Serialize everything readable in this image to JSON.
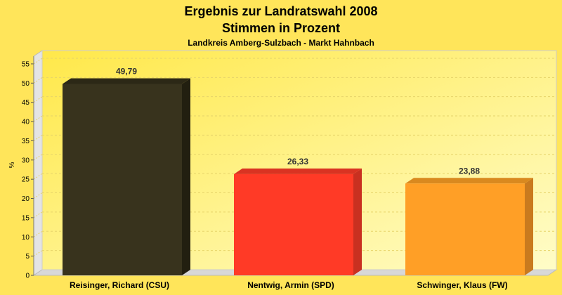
{
  "chart_data": {
    "type": "bar",
    "title": "Ergebnis zur Landratswahl 2008",
    "subtitle": "Stimmen in Prozent",
    "subsubtitle": "Landkreis Amberg-Sulzbach - Markt Hahnbach",
    "ylabel": "%",
    "xlabel": "",
    "ylim": [
      0,
      57
    ],
    "yticks": [
      0,
      5,
      10,
      15,
      20,
      25,
      30,
      35,
      40,
      45,
      50,
      55
    ],
    "grid": true,
    "categories": [
      "Reisinger, Richard (CSU)",
      "Nentwig, Armin (SPD)",
      "Schwinger, Klaus (FW)"
    ],
    "values": [
      49.79,
      26.33,
      23.88
    ],
    "value_labels": [
      "49,79",
      "26,33",
      "23,88"
    ],
    "colors": [
      "#38331d",
      "#ff3a26",
      "#ff9f26"
    ],
    "side_colors": [
      "#221f10",
      "#c93020",
      "#c97a1e"
    ],
    "top_colors": [
      "#2c2816",
      "#d93322",
      "#d9891f"
    ]
  }
}
